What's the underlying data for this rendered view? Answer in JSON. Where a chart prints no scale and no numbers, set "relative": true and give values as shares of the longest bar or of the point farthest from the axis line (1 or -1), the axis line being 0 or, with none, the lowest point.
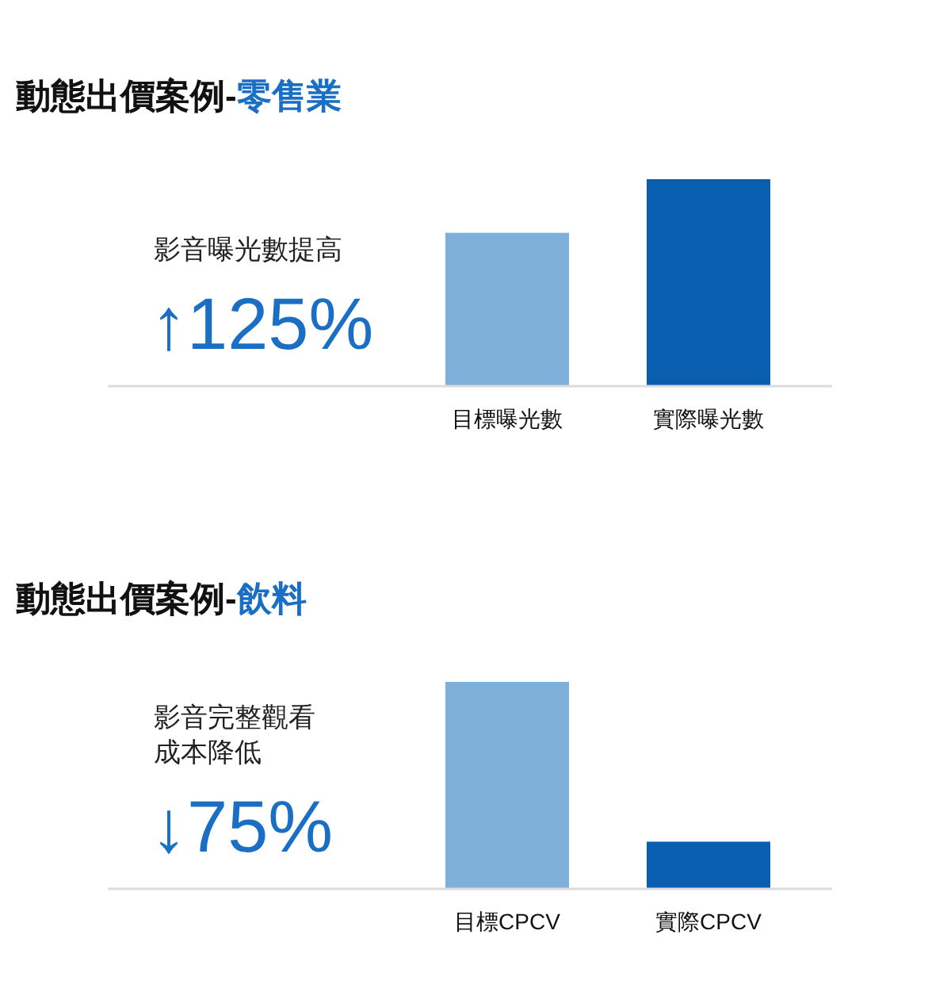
{
  "chart_data": [
    {
      "type": "bar",
      "relative": true,
      "title": "動態出價案例-零售業",
      "categories": [
        "目標曝光數",
        "實際曝光數"
      ],
      "values": [
        0.74,
        1
      ],
      "colors": [
        "#7fb0d9",
        "#0a5eb0"
      ],
      "annotations": [
        "影音曝光數提高",
        "↑125%"
      ]
    },
    {
      "type": "bar",
      "relative": true,
      "title": "動態出價案例-飲料",
      "categories": [
        "目標CPCV",
        "實際CPCV"
      ],
      "values": [
        1,
        0.225
      ],
      "colors": [
        "#7fb0d9",
        "#0a5eb0"
      ],
      "annotations": [
        "影音完整觀看",
        "成本降低",
        "↓75%"
      ]
    }
  ]
}
